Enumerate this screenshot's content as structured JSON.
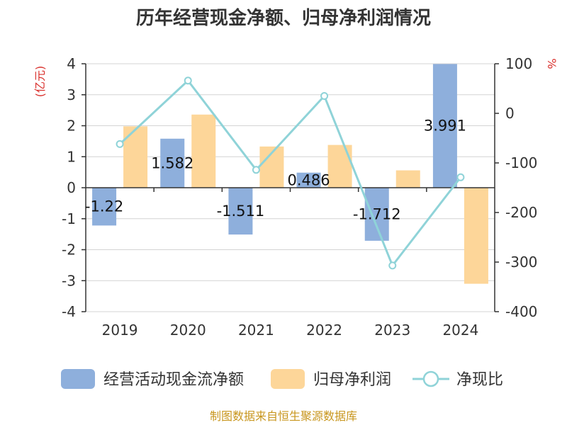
{
  "chart_data": {
    "type": "bar",
    "title": "历年经营现金净额、归母净利润情况",
    "categories": [
      "2019",
      "2020",
      "2021",
      "2022",
      "2023",
      "2024"
    ],
    "series": [
      {
        "name": "经营活动现金流净额",
        "type": "bar",
        "axis": "left",
        "color": "#8eafdc",
        "values": [
          -1.22,
          1.582,
          -1.511,
          0.486,
          -1.712,
          3.991
        ],
        "data_labels": [
          "-1.22",
          "1.582",
          "-1.511",
          "0.486",
          "-1.712",
          "3.991"
        ]
      },
      {
        "name": "归母净利润",
        "type": "bar",
        "axis": "left",
        "color": "#fdd699",
        "values": [
          1.98,
          2.36,
          1.33,
          1.38,
          0.56,
          -3.1
        ]
      },
      {
        "name": "净现比",
        "type": "line",
        "axis": "right",
        "color": "#8fd3d8",
        "values": [
          -62,
          66,
          -114,
          35,
          -307,
          -129
        ]
      }
    ],
    "y_left": {
      "unit": "(亿元)",
      "ylim": [
        -4,
        4
      ],
      "ticks": [
        "4",
        "3",
        "2",
        "1",
        "0",
        "-1",
        "-2",
        "-3",
        "-4"
      ]
    },
    "y_right": {
      "unit": "%",
      "ylim": [
        -400,
        100
      ],
      "ticks": [
        "100",
        "0",
        "-100",
        "-200",
        "-300",
        "-400"
      ]
    },
    "grid": true,
    "legend_position": "bottom"
  },
  "footer": {
    "source": "制图数据来自恒生聚源数据库"
  }
}
